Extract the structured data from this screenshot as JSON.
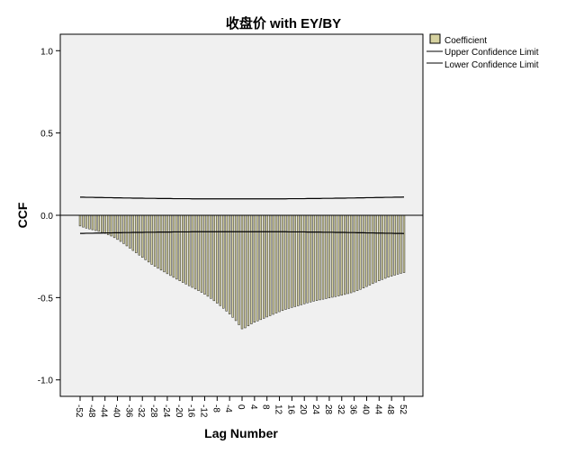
{
  "chart_data": {
    "type": "bar",
    "title": "收盘价 with EY/BY",
    "xlabel": "Lag Number",
    "ylabel": "CCF",
    "ylim": [
      -1.1,
      1.1
    ],
    "y_ticks": [
      1.0,
      0.5,
      0.0,
      -0.5,
      -1.0
    ],
    "y_tick_labels": [
      "1.0",
      "0.5",
      "0.0",
      "-0.5",
      "-1.0"
    ],
    "x_range": [
      -52,
      52
    ],
    "x_ticks": [
      -52,
      -48,
      -44,
      -40,
      -36,
      -32,
      -28,
      -24,
      -20,
      -16,
      -12,
      -8,
      -4,
      0,
      4,
      8,
      12,
      16,
      20,
      24,
      28,
      32,
      36,
      40,
      44,
      48,
      52
    ],
    "grid": false,
    "legend_position": "top-right",
    "legend": {
      "coefficient": "Coefficient",
      "upper": "Upper Confidence Limit",
      "lower": "Lower Confidence Limit"
    },
    "colors": {
      "bar_fill": "#d6d2a0",
      "bar_edge": "#222222",
      "plot_background": "#f0f0f0",
      "lines": "#000000"
    },
    "lags": [
      -52,
      -51,
      -50,
      -49,
      -48,
      -47,
      -46,
      -45,
      -44,
      -43,
      -42,
      -41,
      -40,
      -39,
      -38,
      -37,
      -36,
      -35,
      -34,
      -33,
      -32,
      -31,
      -30,
      -29,
      -28,
      -27,
      -26,
      -25,
      -24,
      -23,
      -22,
      -21,
      -20,
      -19,
      -18,
      -17,
      -16,
      -15,
      -14,
      -13,
      -12,
      -11,
      -10,
      -9,
      -8,
      -7,
      -6,
      -5,
      -4,
      -3,
      -2,
      -1,
      0,
      1,
      2,
      3,
      4,
      5,
      6,
      7,
      8,
      9,
      10,
      11,
      12,
      13,
      14,
      15,
      16,
      17,
      18,
      19,
      20,
      21,
      22,
      23,
      24,
      25,
      26,
      27,
      28,
      29,
      30,
      31,
      32,
      33,
      34,
      35,
      36,
      37,
      38,
      39,
      40,
      41,
      42,
      43,
      44,
      45,
      46,
      47,
      48,
      49,
      50,
      51,
      52
    ],
    "coefficients": [
      -0.065,
      -0.072,
      -0.078,
      -0.083,
      -0.088,
      -0.093,
      -0.098,
      -0.104,
      -0.11,
      -0.118,
      -0.126,
      -0.136,
      -0.147,
      -0.159,
      -0.172,
      -0.186,
      -0.2,
      -0.214,
      -0.228,
      -0.242,
      -0.256,
      -0.27,
      -0.284,
      -0.298,
      -0.31,
      -0.322,
      -0.333,
      -0.344,
      -0.355,
      -0.366,
      -0.377,
      -0.388,
      -0.398,
      -0.408,
      -0.418,
      -0.428,
      -0.438,
      -0.448,
      -0.458,
      -0.468,
      -0.48,
      -0.492,
      -0.505,
      -0.519,
      -0.534,
      -0.549,
      -0.565,
      -0.582,
      -0.6,
      -0.62,
      -0.64,
      -0.665,
      -0.69,
      -0.684,
      -0.672,
      -0.66,
      -0.65,
      -0.642,
      -0.634,
      -0.626,
      -0.618,
      -0.61,
      -0.602,
      -0.594,
      -0.586,
      -0.579,
      -0.572,
      -0.566,
      -0.56,
      -0.555,
      -0.55,
      -0.544,
      -0.538,
      -0.532,
      -0.527,
      -0.522,
      -0.518,
      -0.514,
      -0.51,
      -0.506,
      -0.502,
      -0.498,
      -0.494,
      -0.49,
      -0.486,
      -0.481,
      -0.476,
      -0.471,
      -0.465,
      -0.458,
      -0.45,
      -0.442,
      -0.433,
      -0.424,
      -0.415,
      -0.406,
      -0.398,
      -0.39,
      -0.383,
      -0.376,
      -0.37,
      -0.364,
      -0.358,
      -0.353,
      -0.348
    ],
    "upper_confidence_limit": [
      0.11,
      0.11,
      0.109,
      0.109,
      0.109,
      0.108,
      0.108,
      0.108,
      0.107,
      0.107,
      0.107,
      0.106,
      0.106,
      0.106,
      0.105,
      0.105,
      0.105,
      0.104,
      0.104,
      0.104,
      0.104,
      0.103,
      0.103,
      0.103,
      0.103,
      0.102,
      0.102,
      0.102,
      0.102,
      0.102,
      0.101,
      0.101,
      0.101,
      0.101,
      0.101,
      0.101,
      0.1,
      0.1,
      0.1,
      0.1,
      0.1,
      0.1,
      0.1,
      0.1,
      0.1,
      0.1,
      0.1,
      0.1,
      0.1,
      0.1,
      0.1,
      0.1,
      0.1,
      0.1,
      0.1,
      0.1,
      0.1,
      0.1,
      0.1,
      0.1,
      0.1,
      0.1,
      0.1,
      0.1,
      0.1,
      0.1,
      0.1,
      0.101,
      0.101,
      0.101,
      0.101,
      0.101,
      0.101,
      0.102,
      0.102,
      0.102,
      0.102,
      0.102,
      0.103,
      0.103,
      0.103,
      0.103,
      0.104,
      0.104,
      0.104,
      0.104,
      0.105,
      0.105,
      0.105,
      0.106,
      0.106,
      0.106,
      0.107,
      0.107,
      0.107,
      0.108,
      0.108,
      0.108,
      0.109,
      0.109,
      0.109,
      0.11,
      0.11,
      0.11,
      0.111
    ],
    "lower_confidence_limit": [
      -0.11,
      -0.11,
      -0.109,
      -0.109,
      -0.109,
      -0.108,
      -0.108,
      -0.108,
      -0.107,
      -0.107,
      -0.107,
      -0.106,
      -0.106,
      -0.106,
      -0.105,
      -0.105,
      -0.105,
      -0.104,
      -0.104,
      -0.104,
      -0.104,
      -0.103,
      -0.103,
      -0.103,
      -0.103,
      -0.102,
      -0.102,
      -0.102,
      -0.102,
      -0.102,
      -0.101,
      -0.101,
      -0.101,
      -0.101,
      -0.101,
      -0.101,
      -0.1,
      -0.1,
      -0.1,
      -0.1,
      -0.1,
      -0.1,
      -0.1,
      -0.1,
      -0.1,
      -0.1,
      -0.1,
      -0.1,
      -0.1,
      -0.1,
      -0.1,
      -0.1,
      -0.1,
      -0.1,
      -0.1,
      -0.1,
      -0.1,
      -0.1,
      -0.1,
      -0.1,
      -0.1,
      -0.1,
      -0.1,
      -0.1,
      -0.1,
      -0.1,
      -0.1,
      -0.101,
      -0.101,
      -0.101,
      -0.101,
      -0.101,
      -0.101,
      -0.102,
      -0.102,
      -0.102,
      -0.102,
      -0.102,
      -0.103,
      -0.103,
      -0.103,
      -0.103,
      -0.104,
      -0.104,
      -0.104,
      -0.104,
      -0.105,
      -0.105,
      -0.105,
      -0.106,
      -0.106,
      -0.106,
      -0.107,
      -0.107,
      -0.107,
      -0.108,
      -0.108,
      -0.108,
      -0.109,
      -0.109,
      -0.109,
      -0.11,
      -0.11,
      -0.11,
      -0.111
    ]
  }
}
